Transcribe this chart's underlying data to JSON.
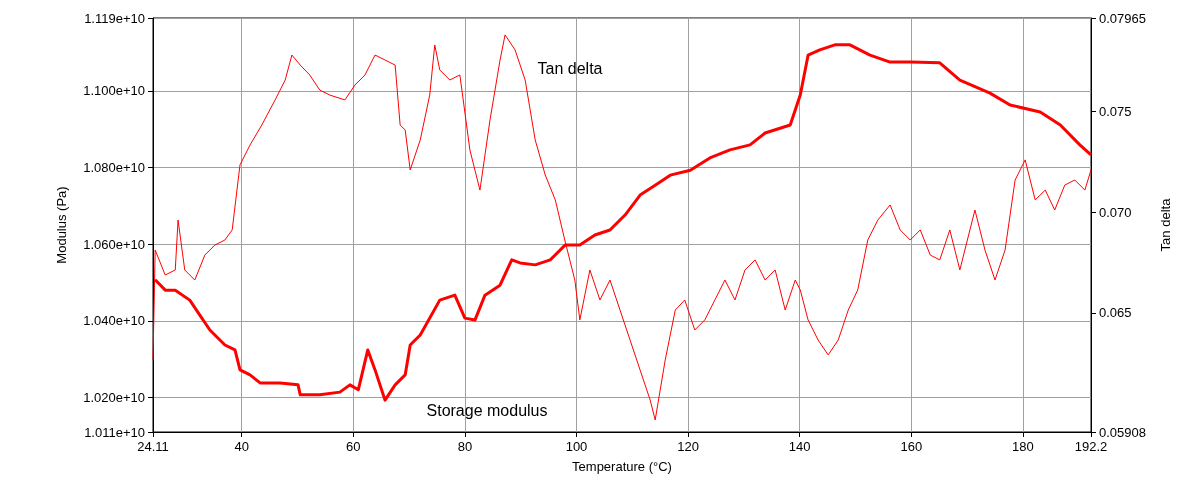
{
  "chart_data": {
    "type": "line",
    "xlabel": "Temperature (°C)",
    "ylabel": "Modulus (Pa)",
    "y2label": "Tan delta",
    "xlim": [
      24.11,
      192.2
    ],
    "xticks": [
      24.11,
      40,
      60,
      80,
      100,
      120,
      140,
      160,
      180,
      192.2
    ],
    "ylim": [
      10110000000,
      11190000000
    ],
    "yticks": [
      {
        "value": 10110000000,
        "label": "1.011e+10"
      },
      {
        "value": 10200000000,
        "label": "1.020e+10"
      },
      {
        "value": 10400000000,
        "label": "1.040e+10"
      },
      {
        "value": 10600000000,
        "label": "1.060e+10"
      },
      {
        "value": 10800000000,
        "label": "1.080e+10"
      },
      {
        "value": 11000000000,
        "label": "1.100e+10"
      },
      {
        "value": 11190000000,
        "label": "1.119e+10"
      }
    ],
    "y2lim": [
      0.05908,
      0.07965
    ],
    "y2ticks": [
      0.05908,
      0.065,
      {
        "value": 0.07,
        "label": "0.070"
      },
      0.075,
      0.07965
    ],
    "grid": true,
    "marker": "none",
    "annotations": [
      "Tan delta",
      "Storage modulus"
    ],
    "series": [
      {
        "color": "#ff0000",
        "axis": "y",
        "x": [
          24.5,
          26.3,
          28.1,
          30.7,
          32.5,
          34.3,
          37.0,
          38.8,
          39.7,
          41.5,
          43.3,
          46.9,
          50.1,
          50.5,
          54.0,
          57.6,
          59.4,
          60.9,
          62.6,
          63.9,
          65.7,
          67.5,
          69.3,
          70.2,
          72.0,
          75.5,
          78.2,
          80.0,
          81.8,
          83.6,
          86.3,
          88.4,
          89.9,
          92.6,
          95.3,
          98.0,
          100.6,
          103.3,
          106.0,
          108.7,
          111.4,
          114.1,
          116.8,
          120.4,
          123.9,
          127.5,
          131.1,
          133.8,
          138.3,
          140.1,
          141.5,
          143.6,
          146.3,
          149.0,
          152.6,
          156.2,
          159.8,
          165.1,
          168.7,
          174.1,
          177.7,
          183.1,
          186.7,
          190.2,
          192.2
        ],
        "values": [
          10507000000,
          10480000000,
          10480000000,
          10454000000,
          10415000000,
          10376000000,
          10337000000,
          10324000000,
          10272000000,
          10259000000,
          10238000000,
          10238000000,
          10233000000,
          10207000000,
          10207000000,
          10214000000,
          10233000000,
          10220000000,
          10324000000,
          10272000000,
          10193000000,
          10233000000,
          10259000000,
          10337000000,
          10363000000,
          10454000000,
          10467000000,
          10407000000,
          10402000000,
          10467000000,
          10493000000,
          10559000000,
          10551000000,
          10546000000,
          10559000000,
          10598000000,
          10598000000,
          10624000000,
          10637000000,
          10676000000,
          10728000000,
          10754000000,
          10780000000,
          10793000000,
          10825000000,
          10846000000,
          10859000000,
          10890000000,
          10911000000,
          10989000000,
          11093000000,
          11107000000,
          11120000000,
          11120000000,
          11093000000,
          11075000000,
          11075000000,
          11073000000,
          11028000000,
          10994000000,
          10963000000,
          10945000000,
          10911000000,
          10859000000,
          10833000000
        ]
      },
      {
        "color": "#ff0000",
        "axis": "y2",
        "x": [
          24.11,
          24.5,
          26.3,
          28.1,
          28.6,
          29.8,
          31.6,
          33.4,
          35.2,
          37.0,
          38.3,
          39.7,
          41.5,
          43.6,
          46.0,
          47.8,
          49.0,
          50.5,
          52.2,
          54.0,
          55.8,
          58.5,
          60.3,
          62.1,
          63.9,
          65.7,
          67.5,
          68.4,
          69.3,
          70.2,
          72.0,
          73.7,
          74.6,
          75.5,
          77.3,
          79.1,
          80.9,
          82.7,
          84.5,
          86.3,
          87.2,
          89.0,
          90.8,
          92.6,
          94.4,
          96.2,
          97.9,
          99.7,
          100.6,
          102.4,
          104.2,
          106.0,
          107.8,
          109.6,
          111.4,
          113.2,
          114.1,
          115.9,
          117.7,
          119.4,
          121.2,
          123.0,
          124.8,
          126.6,
          128.4,
          130.2,
          132.0,
          133.8,
          135.6,
          137.4,
          139.2,
          140.1,
          141.5,
          143.3,
          145.1,
          146.9,
          148.7,
          150.4,
          152.2,
          154.0,
          156.2,
          158.0,
          159.8,
          161.6,
          163.4,
          165.1,
          166.9,
          168.7,
          170.5,
          171.4,
          173.2,
          175.0,
          176.8,
          178.6,
          180.4,
          182.2,
          184.0,
          185.7,
          187.5,
          189.3,
          191.1,
          192.2
        ],
        "values": [
          0.06266,
          0.06812,
          0.06688,
          0.06713,
          0.06961,
          0.06713,
          0.06663,
          0.06787,
          0.06837,
          0.06862,
          0.06912,
          0.07235,
          0.07334,
          0.07433,
          0.07558,
          0.07657,
          0.07781,
          0.07731,
          0.07682,
          0.07607,
          0.07582,
          0.07558,
          0.07632,
          0.07682,
          0.07781,
          0.07756,
          0.07731,
          0.07433,
          0.07409,
          0.0721,
          0.07359,
          0.07582,
          0.07831,
          0.07707,
          0.07657,
          0.07682,
          0.07309,
          0.0711,
          0.07458,
          0.07756,
          0.07881,
          0.07806,
          0.07657,
          0.07359,
          0.07185,
          0.07061,
          0.06862,
          0.06663,
          0.06465,
          0.06713,
          0.06564,
          0.06663,
          0.06514,
          0.06365,
          0.06216,
          0.06067,
          0.05968,
          0.06266,
          0.06514,
          0.06564,
          0.06415,
          0.06465,
          0.06564,
          0.06663,
          0.06564,
          0.06713,
          0.06763,
          0.06663,
          0.06713,
          0.06514,
          0.06663,
          0.06614,
          0.06465,
          0.06365,
          0.06291,
          0.06365,
          0.06514,
          0.06614,
          0.06862,
          0.06961,
          0.07036,
          0.06912,
          0.06862,
          0.06912,
          0.06787,
          0.06763,
          0.06912,
          0.06713,
          0.06912,
          0.07011,
          0.06812,
          0.06663,
          0.06812,
          0.0716,
          0.0726,
          0.07061,
          0.0711,
          0.07011,
          0.07135,
          0.0716,
          0.0711,
          0.0721
        ]
      }
    ]
  }
}
